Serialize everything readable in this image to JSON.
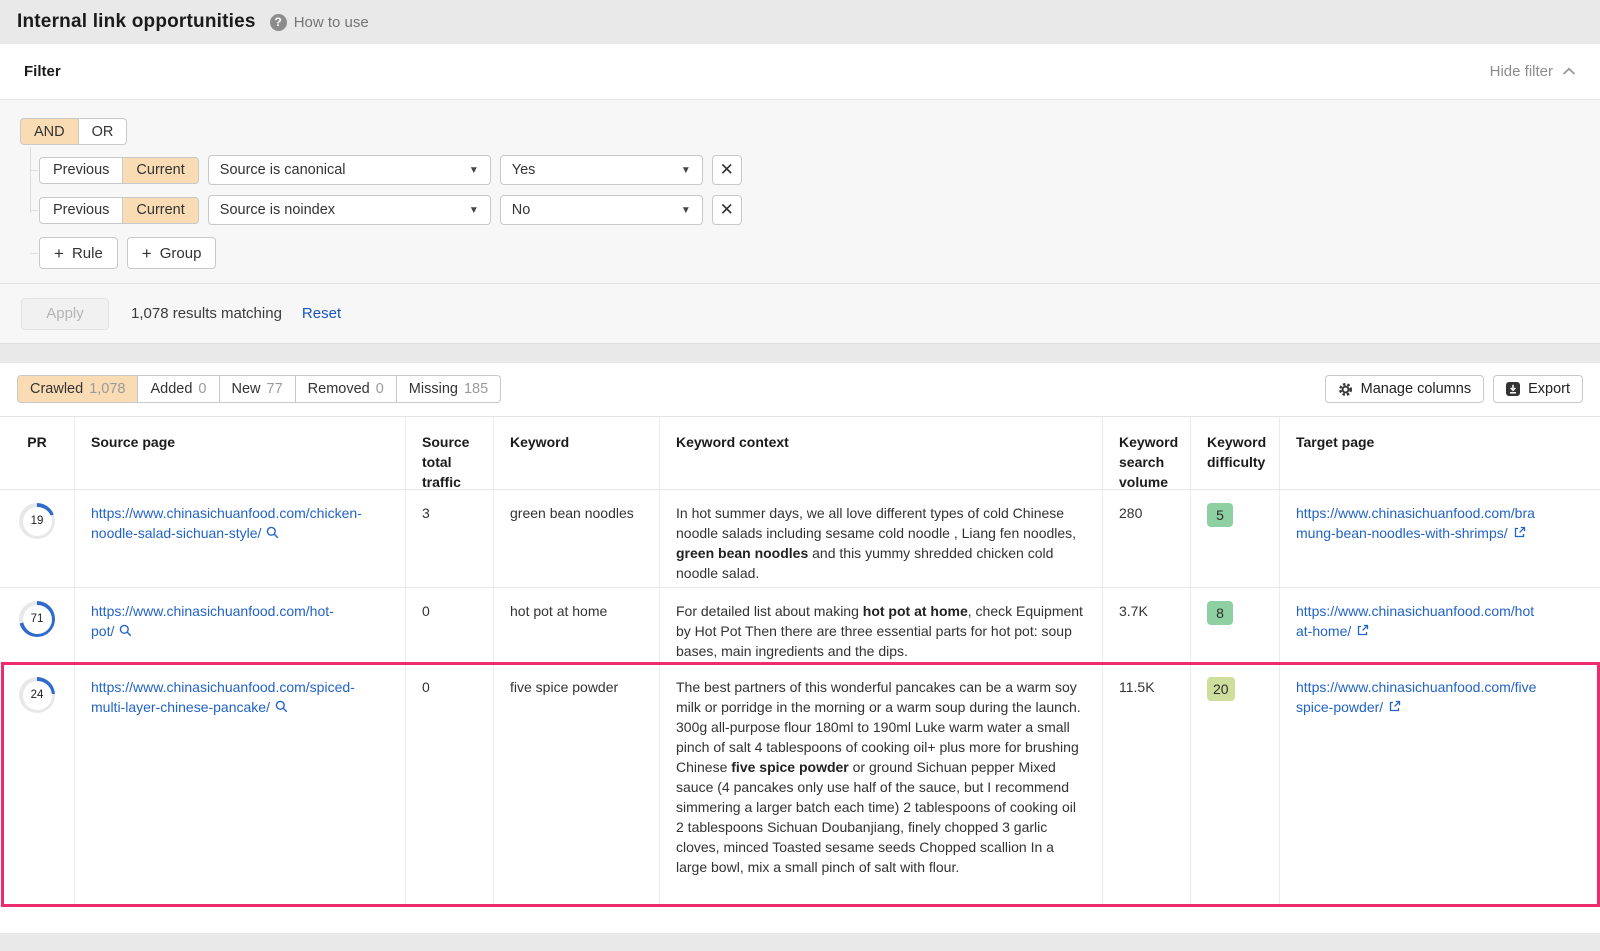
{
  "header": {
    "title": "Internal link opportunities",
    "help_label": "How to use"
  },
  "filter": {
    "title": "Filter",
    "hide_label": "Hide filter",
    "logic": {
      "and_label": "AND",
      "or_label": "OR",
      "active": "AND"
    },
    "rules": [
      {
        "previous_label": "Previous",
        "current_label": "Current",
        "active": "Current",
        "field": "Source is canonical",
        "value": "Yes"
      },
      {
        "previous_label": "Previous",
        "current_label": "Current",
        "active": "Current",
        "field": "Source is noindex",
        "value": "No"
      }
    ],
    "add_rule_label": "Rule",
    "add_group_label": "Group",
    "apply_label": "Apply",
    "results_text": "1,078 results matching",
    "reset_label": "Reset"
  },
  "tabs": [
    {
      "label": "Crawled",
      "count": "1,078",
      "active": true
    },
    {
      "label": "Added",
      "count": "0",
      "active": false
    },
    {
      "label": "New",
      "count": "77",
      "active": false
    },
    {
      "label": "Removed",
      "count": "0",
      "active": false
    },
    {
      "label": "Missing",
      "count": "185",
      "active": false
    }
  ],
  "toolbar": {
    "manage_columns_label": "Manage columns",
    "export_label": "Export"
  },
  "table": {
    "columns": [
      "PR",
      "Source page",
      "Source total traffic",
      "Keyword",
      "Keyword context",
      "Keyword search volume",
      "Keyword difficulty",
      "Target page"
    ],
    "rows": [
      {
        "pr": 19,
        "source_line1": "https://www.chinasichuanfood.com/chicken-",
        "source_line2": "noodle-salad-sichuan-style/",
        "traffic": "3",
        "keyword": "green bean noodles",
        "context_before": "In hot summer days, we all love different types of cold Chinese noodle salads including  sesame cold noodle , Liang fen noodles, ",
        "context_bold": "green bean noodles",
        "context_after": " and this yummy shredded chicken cold noodle salad.",
        "volume": "280",
        "kd": "5",
        "kd_color": "#8fd0a2",
        "target_line1": "https://www.chinasichuanfood.com/bra",
        "target_line2": "mung-bean-noodles-with-shrimps/",
        "highlighted": false
      },
      {
        "pr": 71,
        "source_line1": "https://www.chinasichuanfood.com/hot-",
        "source_line2": "pot/",
        "traffic": "0",
        "keyword": "hot pot at home",
        "context_before": "For detailed list about making ",
        "context_bold": "hot pot at home",
        "context_after": ", check Equipment by Hot Pot Then there are three essential parts for hot pot: soup bases, main ingredients and the dips.",
        "volume": "3.7K",
        "kd": "8",
        "kd_color": "#8fd0a2",
        "target_line1": "https://www.chinasichuanfood.com/hot",
        "target_line2": "at-home/",
        "highlighted": false
      },
      {
        "pr": 24,
        "source_line1": "https://www.chinasichuanfood.com/spiced-",
        "source_line2": "multi-layer-chinese-pancake/",
        "traffic": "0",
        "keyword": "five spice powder",
        "context_before": "The best partners of  this wonderful pancakes can be a warm soy milk  or  porridge  in the morning or a warm soup during the launch. 300g all-purpose flour 180ml to 190ml Luke warm water a small pinch of salt 4 tablespoons of cooking oil+ plus more for brushing Chinese ",
        "context_bold": "five spice powder",
        "context_after": " or ground Sichuan pepper Mixed sauce (4 pancakes only use half of the sauce, but I recommend simmering a larger batch each time) 2 tablespoons of cooking oil 2 tablespoons Sichuan Doubanjiang, finely chopped 3 garlic cloves, minced Toasted sesame seeds Chopped scallion In a large bowl, mix a small pinch of salt with flour.",
        "volume": "11.5K",
        "kd": "20",
        "kd_color": "#cede9d",
        "target_line1": "https://www.chinasichuanfood.com/five",
        "target_line2": "spice-powder/",
        "highlighted": true
      }
    ]
  },
  "colors": {
    "accent_peach": "#f9dcb4",
    "link_blue": "#2263c7",
    "pr_arc_blue": "#2e6bcb",
    "pr_track": "#e8e8e8",
    "highlight_pink": "#ee2b6c",
    "kd_easy_green": "#8fd0a2",
    "kd_low_yellow_green": "#cede9d"
  }
}
